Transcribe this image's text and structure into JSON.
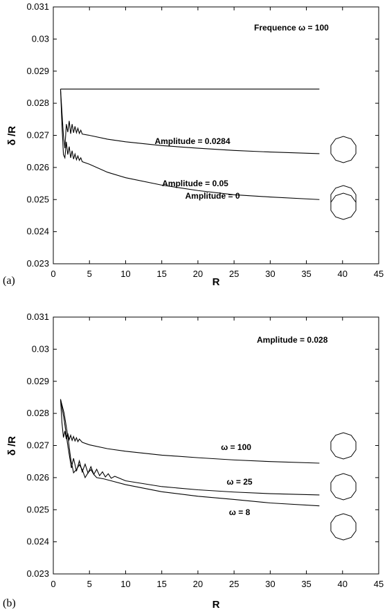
{
  "chart_data": [
    {
      "type": "line",
      "panel_label": "(a)",
      "xlabel": "R",
      "ylabel": "δ /R",
      "xlim": [
        0,
        45
      ],
      "ylim": [
        0.023,
        0.031
      ],
      "xticks": [
        "0",
        "5",
        "10",
        "15",
        "20",
        "25",
        "30",
        "35",
        "40",
        "45"
      ],
      "yticks": [
        "0.023",
        "0.024",
        "0.025",
        "0.026",
        "0.027",
        "0.028",
        "0.029",
        "0.03",
        "0.031"
      ],
      "annotation": "Frequence ω = 100",
      "series": [
        {
          "name": "Amplitude = 0",
          "x": [
            1,
            5,
            10,
            15,
            20,
            25,
            30,
            36.8
          ],
          "y": [
            0.02844,
            0.02844,
            0.02844,
            0.02844,
            0.02844,
            0.02844,
            0.02844,
            0.02844
          ]
        },
        {
          "name": "Amplitude = 0.0284",
          "x": [
            1,
            1.2,
            1.4,
            1.6,
            1.8,
            2.0,
            2.2,
            2.4,
            2.6,
            2.8,
            3.0,
            3.2,
            3.4,
            3.6,
            3.8,
            4.0,
            5,
            7.5,
            10,
            15,
            20,
            25,
            30,
            36.8
          ],
          "y": [
            0.02844,
            0.0277,
            0.027,
            0.0266,
            0.02735,
            0.0271,
            0.02745,
            0.02705,
            0.02735,
            0.02708,
            0.02728,
            0.02708,
            0.02722,
            0.02706,
            0.02716,
            0.02704,
            0.027,
            0.02688,
            0.0268,
            0.02668,
            0.0266,
            0.02653,
            0.02648,
            0.02643
          ]
        },
        {
          "name": "Amplitude = 0.05",
          "x": [
            1,
            1.2,
            1.4,
            1.6,
            1.8,
            2.0,
            2.2,
            2.4,
            2.6,
            2.8,
            3.0,
            3.2,
            3.4,
            3.6,
            3.8,
            4.0,
            5,
            7.5,
            10,
            15,
            20,
            25,
            30,
            36.8
          ],
          "y": [
            0.02844,
            0.0273,
            0.0264,
            0.0263,
            0.0268,
            0.0264,
            0.02665,
            0.0263,
            0.02652,
            0.02626,
            0.02642,
            0.02624,
            0.02636,
            0.02622,
            0.0263,
            0.02618,
            0.0261,
            0.02585,
            0.02568,
            0.02545,
            0.02528,
            0.02515,
            0.02508,
            0.025
          ]
        }
      ]
    },
    {
      "type": "line",
      "panel_label": "(b)",
      "xlabel": "R",
      "ylabel": "δ /R",
      "xlim": [
        0,
        45
      ],
      "ylim": [
        0.023,
        0.031
      ],
      "xticks": [
        "0",
        "5",
        "10",
        "15",
        "20",
        "25",
        "30",
        "35",
        "40",
        "45"
      ],
      "yticks": [
        "0.023",
        "0.024",
        "0.025",
        "0.026",
        "0.027",
        "0.028",
        "0.029",
        "0.03",
        "0.031"
      ],
      "annotation": "Amplitude = 0.028",
      "series": [
        {
          "name": "ω = 100",
          "x": [
            1,
            1.2,
            1.4,
            1.6,
            1.8,
            2.0,
            2.2,
            2.4,
            2.6,
            2.8,
            3.0,
            3.2,
            3.4,
            3.6,
            4.0,
            5,
            7.5,
            10,
            15,
            20,
            25,
            30,
            36.8
          ],
          "y": [
            0.02844,
            0.0277,
            0.02725,
            0.02745,
            0.0272,
            0.02738,
            0.02718,
            0.02732,
            0.02716,
            0.02728,
            0.02714,
            0.02724,
            0.02712,
            0.0272,
            0.0271,
            0.02702,
            0.0269,
            0.02682,
            0.0267,
            0.02662,
            0.02655,
            0.0265,
            0.02645
          ]
        },
        {
          "name": "ω = 25",
          "x": [
            1,
            1.5,
            2.0,
            2.5,
            2.8,
            3.2,
            3.6,
            4.0,
            4.4,
            4.8,
            5.2,
            5.6,
            6.0,
            6.4,
            6.8,
            7.2,
            7.6,
            8.0,
            8.5,
            10,
            15,
            20,
            25,
            30,
            36.8
          ],
          "y": [
            0.02844,
            0.0278,
            0.027,
            0.0263,
            0.0266,
            0.0262,
            0.02652,
            0.02618,
            0.02642,
            0.02614,
            0.02634,
            0.0261,
            0.02626,
            0.02606,
            0.02618,
            0.02602,
            0.02612,
            0.02598,
            0.02604,
            0.0259,
            0.02572,
            0.02562,
            0.02555,
            0.0255,
            0.02546
          ]
        },
        {
          "name": "ω = 8",
          "x": [
            1,
            1.5,
            2.0,
            2.4,
            2.8,
            3.2,
            3.6,
            4.0,
            4.4,
            4.8,
            5.2,
            5.6,
            6.0,
            7,
            8,
            10,
            15,
            20,
            25,
            30,
            36.8
          ],
          "y": [
            0.02844,
            0.028,
            0.0273,
            0.0266,
            0.02615,
            0.02625,
            0.0264,
            0.02625,
            0.026,
            0.02615,
            0.02625,
            0.0261,
            0.026,
            0.02596,
            0.0259,
            0.02578,
            0.02556,
            0.02542,
            0.02532,
            0.02521,
            0.02512
          ]
        }
      ]
    }
  ]
}
